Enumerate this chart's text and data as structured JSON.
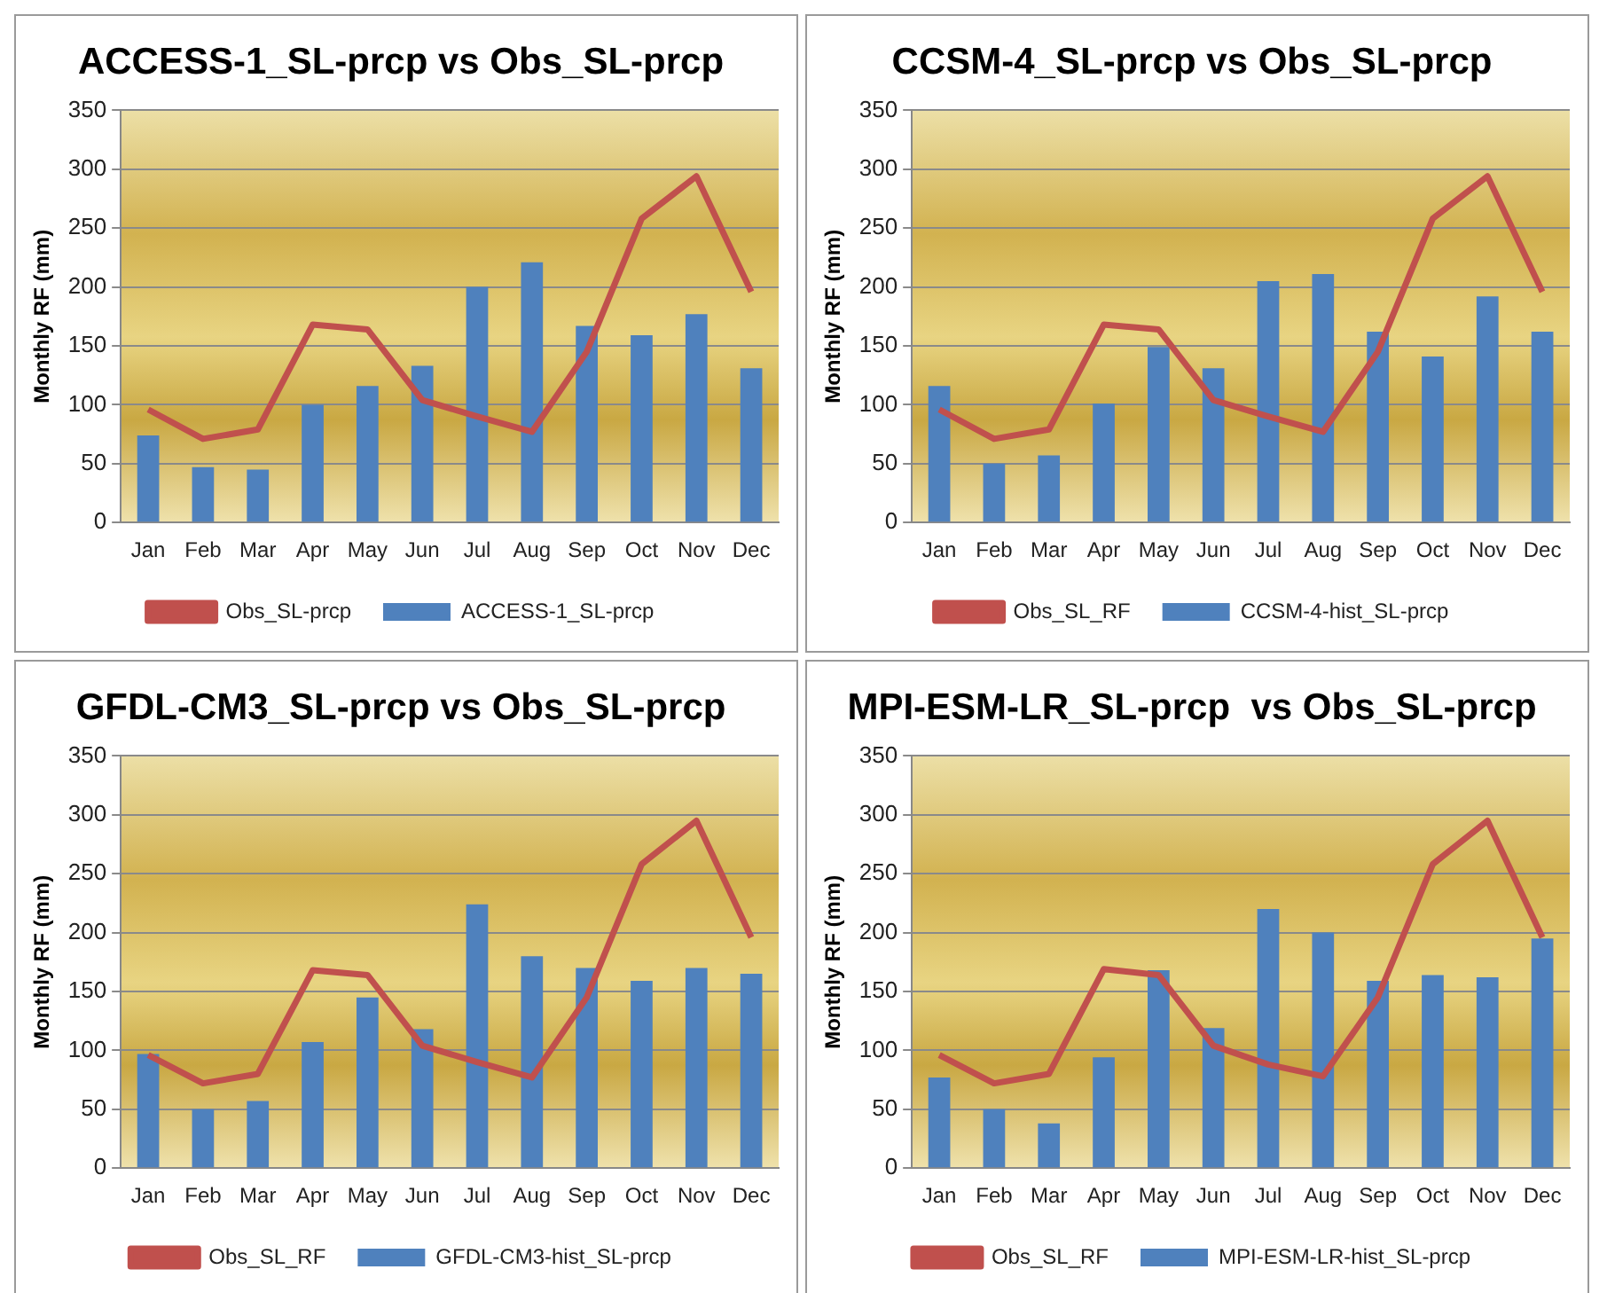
{
  "chart_data": [
    {
      "type": "bar",
      "title": "ACCESS-1_SL-prcp vs Obs_SL-prcp",
      "ylabel": "Monthly RF (mm)",
      "categories": [
        "Jan",
        "Feb",
        "Mar",
        "Apr",
        "May",
        "Jun",
        "Jul",
        "Aug",
        "Sep",
        "Oct",
        "Nov",
        "Dec"
      ],
      "ylim": [
        0,
        350
      ],
      "yticks": [
        0,
        50,
        100,
        150,
        200,
        250,
        300,
        350
      ],
      "grid": "y",
      "legend": "bottom",
      "series": [
        {
          "name": "ACCESS-1_SL-prcp",
          "color": "#4f81bd",
          "values": [
            74,
            47,
            45,
            100,
            116,
            133,
            200,
            221,
            167,
            159,
            177,
            131
          ]
        },
        {
          "name": "Obs_SL-prcp",
          "type": "line",
          "color": "#c0504d",
          "marker": "none",
          "values": [
            96,
            71,
            79,
            168,
            164,
            104,
            90,
            77,
            145,
            258,
            294,
            196
          ]
        }
      ]
    },
    {
      "type": "bar",
      "title": "CCSM-4_SL-prcp vs Obs_SL-prcp",
      "ylabel": "Monthly RF (mm)",
      "categories": [
        "Jan",
        "Feb",
        "Mar",
        "Apr",
        "May",
        "Jun",
        "Jul",
        "Aug",
        "Sep",
        "Oct",
        "Nov",
        "Dec"
      ],
      "ylim": [
        0,
        350
      ],
      "yticks": [
        0,
        50,
        100,
        150,
        200,
        250,
        300,
        350
      ],
      "grid": "y",
      "legend": "bottom",
      "series": [
        {
          "name": "CCSM-4-hist_SL-prcp",
          "color": "#4f81bd",
          "values": [
            116,
            50,
            57,
            101,
            149,
            131,
            205,
            211,
            162,
            141,
            192,
            162
          ]
        },
        {
          "name": "Obs_SL_RF",
          "type": "line",
          "color": "#c0504d",
          "marker": "none",
          "values": [
            96,
            71,
            79,
            168,
            164,
            104,
            90,
            77,
            145,
            258,
            294,
            196
          ]
        }
      ]
    },
    {
      "type": "bar",
      "title": "GFDL-CM3_SL-prcp vs Obs_SL-prcp",
      "ylabel": "Monthly RF (mm)",
      "categories": [
        "Jan",
        "Feb",
        "Mar",
        "Apr",
        "May",
        "Jun",
        "Jul",
        "Aug",
        "Sep",
        "Oct",
        "Nov",
        "Dec"
      ],
      "ylim": [
        0,
        350
      ],
      "yticks": [
        0,
        50,
        100,
        150,
        200,
        250,
        300,
        350
      ],
      "grid": "y",
      "legend": "bottom",
      "series": [
        {
          "name": "GFDL-CM3-hist_SL-prcp",
          "color": "#4f81bd",
          "values": [
            97,
            50,
            57,
            107,
            145,
            118,
            224,
            180,
            170,
            159,
            170,
            165
          ]
        },
        {
          "name": "Obs_SL_RF",
          "type": "line",
          "color": "#c0504d",
          "marker": "none",
          "values": [
            96,
            72,
            80,
            168,
            164,
            104,
            90,
            77,
            145,
            258,
            295,
            196
          ]
        }
      ]
    },
    {
      "type": "bar",
      "title": "MPI-ESM-LR_SL-prcp  vs Obs_SL-prcp",
      "ylabel": "Monthly RF (mm)",
      "categories": [
        "Jan",
        "Feb",
        "Mar",
        "Apr",
        "May",
        "Jun",
        "Jul",
        "Aug",
        "Sep",
        "Oct",
        "Nov",
        "Dec"
      ],
      "ylim": [
        0,
        350
      ],
      "yticks": [
        0,
        50,
        100,
        150,
        200,
        250,
        300,
        350
      ],
      "grid": "y",
      "legend": "bottom",
      "series": [
        {
          "name": "MPI-ESM-LR-hist_SL-prcp",
          "color": "#4f81bd",
          "values": [
            77,
            50,
            38,
            94,
            168,
            119,
            220,
            200,
            159,
            164,
            162,
            195
          ]
        },
        {
          "name": "Obs_SL_RF",
          "type": "line",
          "color": "#c0504d",
          "marker": "none",
          "values": [
            96,
            72,
            80,
            169,
            164,
            104,
            88,
            78,
            145,
            258,
            295,
            196
          ]
        }
      ]
    }
  ]
}
